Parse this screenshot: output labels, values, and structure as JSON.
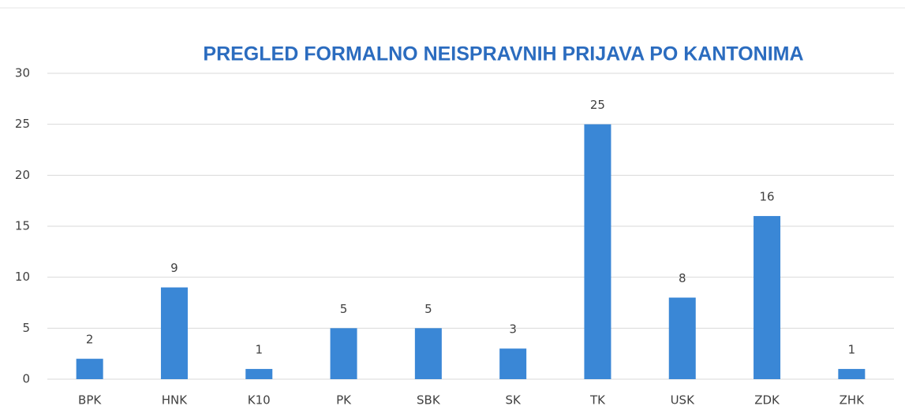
{
  "chart_data": {
    "type": "bar",
    "title": "PREGLED FORMALNO NEISPRAVNIH PRIJAVA PO KANTONIMA",
    "categories": [
      "BPK",
      "HNK",
      "K10",
      "PK",
      "SBK",
      "SK",
      "TK",
      "USK",
      "ZDK",
      "ZHK"
    ],
    "values": [
      2,
      9,
      1,
      5,
      5,
      3,
      25,
      8,
      16,
      1
    ],
    "color": "#3a87d6",
    "ylim": [
      0,
      30
    ],
    "yticks": [
      0,
      5,
      10,
      15,
      20,
      25,
      30
    ],
    "grid": true
  }
}
